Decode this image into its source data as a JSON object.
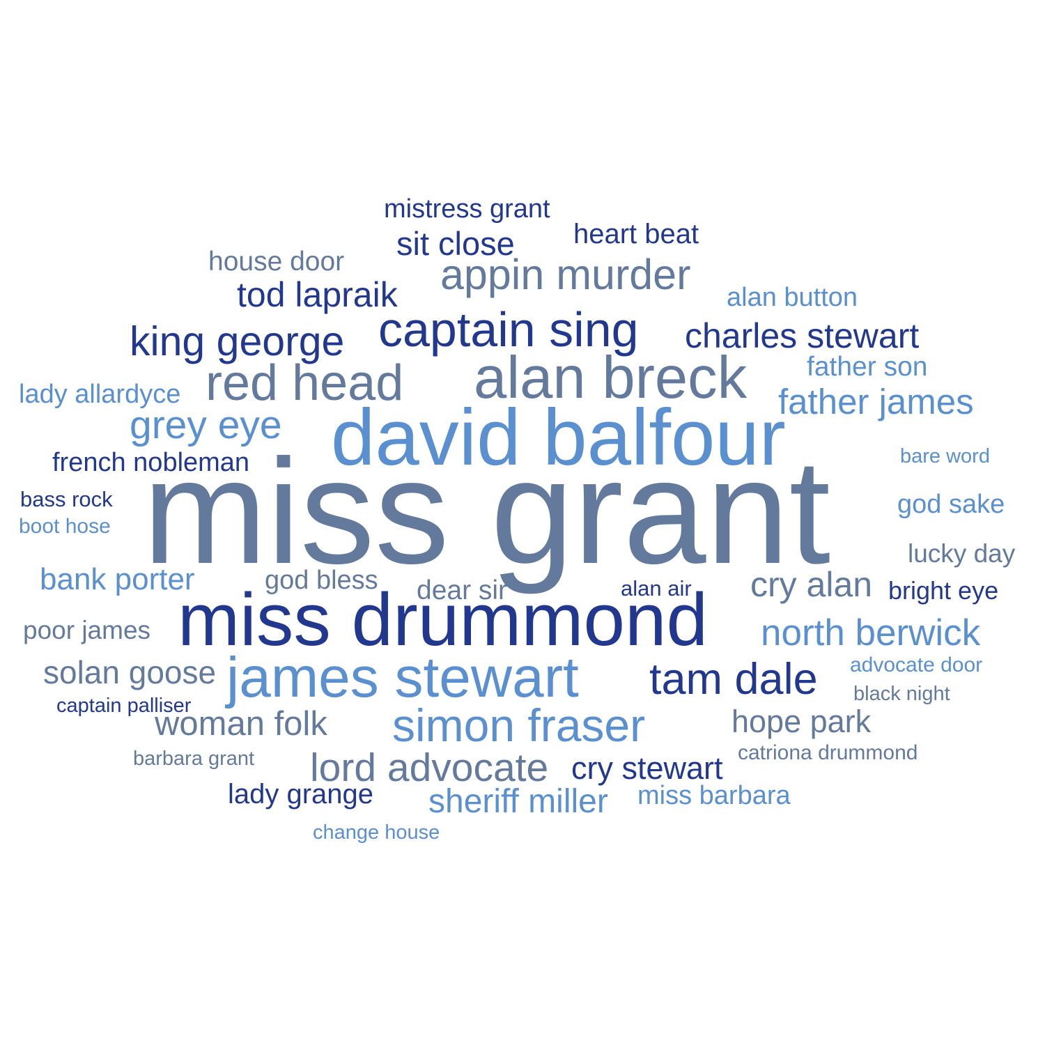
{
  "wordcloud": {
    "palette": {
      "slate": "#647a9d",
      "navy": "#22388f",
      "light": "#5a8fd0"
    },
    "words": [
      {
        "text": "miss grant"
      },
      {
        "text": "david balfour"
      },
      {
        "text": "miss drummond"
      },
      {
        "text": "alan breck"
      },
      {
        "text": "james stewart"
      },
      {
        "text": "captain sing"
      },
      {
        "text": "red head"
      },
      {
        "text": "simon fraser"
      },
      {
        "text": "appin murder"
      },
      {
        "text": "king george"
      },
      {
        "text": "tam dale"
      },
      {
        "text": "grey eye"
      },
      {
        "text": "lord advocate"
      },
      {
        "text": "north berwick"
      },
      {
        "text": "father james"
      },
      {
        "text": "charles stewart"
      },
      {
        "text": "tod lapraik"
      },
      {
        "text": "cry alan"
      },
      {
        "text": "woman folk"
      },
      {
        "text": "sheriff miller"
      },
      {
        "text": "sit close"
      },
      {
        "text": "solan goose"
      },
      {
        "text": "hope park"
      },
      {
        "text": "cry stewart"
      },
      {
        "text": "bank porter"
      },
      {
        "text": "heart beat"
      },
      {
        "text": "lady grange"
      },
      {
        "text": "mistress grant"
      },
      {
        "text": "french nobleman"
      },
      {
        "text": "father son"
      },
      {
        "text": "house door"
      },
      {
        "text": "dear sir"
      },
      {
        "text": "lady allardyce"
      },
      {
        "text": "alan button"
      },
      {
        "text": "god sake"
      },
      {
        "text": "god bless"
      },
      {
        "text": "lucky day"
      },
      {
        "text": "bright eye"
      },
      {
        "text": "poor james"
      },
      {
        "text": "miss barbara"
      },
      {
        "text": "bass rock"
      },
      {
        "text": "alan air"
      },
      {
        "text": "advocate door"
      },
      {
        "text": "captain palliser"
      },
      {
        "text": "black night"
      },
      {
        "text": "bare word"
      },
      {
        "text": "boot hose"
      },
      {
        "text": "catriona drummond"
      },
      {
        "text": "barbara grant"
      },
      {
        "text": "change house"
      }
    ]
  }
}
